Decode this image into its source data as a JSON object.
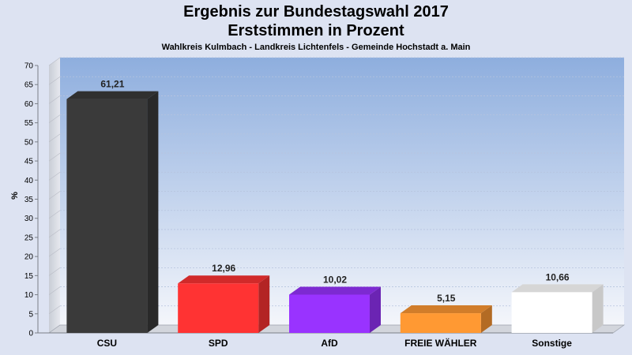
{
  "chart_data": {
    "type": "bar",
    "title": "Ergebnis zur Bundestagswahl 2017",
    "title_line2": "Erststimmen in Prozent",
    "subtitle": "Wahlkreis Kulmbach - Landkreis Lichtenfels - Gemeinde Hochstadt a. Main",
    "ylabel": "%",
    "xlabel": "",
    "ylim": [
      0,
      70
    ],
    "yticks": [
      0,
      5,
      10,
      15,
      20,
      25,
      30,
      35,
      40,
      45,
      50,
      55,
      60,
      65,
      70
    ],
    "grid": true,
    "legend": "none",
    "categories": [
      "CSU",
      "SPD",
      "AfD",
      "FREIE WÄHLER",
      "Sonstige"
    ],
    "values": [
      61.21,
      12.96,
      10.02,
      5.15,
      10.66
    ],
    "value_labels": [
      "61,21",
      "12,96",
      "10,02",
      "5,15",
      "10,66"
    ],
    "colors": [
      "#3a3a3a",
      "#ff3333",
      "#9933ff",
      "#ff9933",
      "#ffffff"
    ]
  }
}
